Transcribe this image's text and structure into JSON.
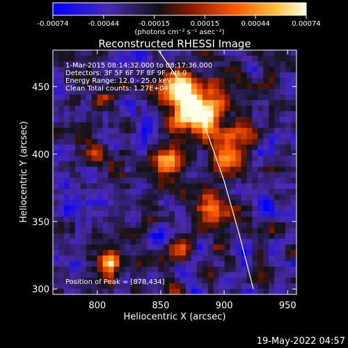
{
  "chart_data": {
    "type": "heatmap",
    "title": "Reconstructed RHESSI Image",
    "xlabel": "Heliocentric X (arcsec)",
    "ylabel": "Heliocentric Y (arcsec)",
    "xlim": [
      765,
      957
    ],
    "ylim": [
      296,
      477
    ],
    "xticks": [
      800,
      850,
      900,
      950
    ],
    "yticks": [
      300,
      350,
      400,
      450
    ],
    "colorbar": {
      "ticks": [
        "-0.00074",
        "-0.00044",
        "-0.00015",
        "0.00015",
        "0.00044",
        "0.00074"
      ],
      "range": [
        -0.00074,
        0.00074
      ],
      "unit_label": "(photons cm⁻² s⁻¹ asec⁻²)",
      "colors": [
        "#0000ff",
        "#4a2ab0",
        "#1a1a1a",
        "#b03000",
        "#ff7800",
        "#ffffe0"
      ]
    },
    "annotations": [
      " 1-Mar-2015 08:14:32.000 to 08:17:36.000",
      "Detectors: 3F 5F 6F 7F 8F 9F, Att 0",
      "Energy Range: 12.0 - 25.0 keV",
      "Clean    Total counts: 1.27E+04"
    ],
    "peak_label": "Position of Peak = [878,434]",
    "peak": [
      878,
      434
    ],
    "limb_curve": [
      [
        848,
        477
      ],
      [
        868,
        450
      ],
      [
        885,
        420
      ],
      [
        900,
        380
      ],
      [
        912,
        340
      ],
      [
        923,
        300
      ]
    ],
    "bright_regions": [
      {
        "x": 878,
        "y": 434,
        "amp": 1.0,
        "sx": 22,
        "sy": 20
      },
      {
        "x": 860,
        "y": 450,
        "amp": 0.6,
        "sx": 14,
        "sy": 12
      },
      {
        "x": 900,
        "y": 398,
        "amp": 0.7,
        "sx": 12,
        "sy": 14
      },
      {
        "x": 890,
        "y": 360,
        "amp": 0.75,
        "sx": 10,
        "sy": 12
      },
      {
        "x": 855,
        "y": 395,
        "amp": 0.55,
        "sx": 12,
        "sy": 10
      },
      {
        "x": 810,
        "y": 320,
        "amp": 0.8,
        "sx": 8,
        "sy": 10
      },
      {
        "x": 800,
        "y": 400,
        "amp": 0.5,
        "sx": 10,
        "sy": 10
      },
      {
        "x": 800,
        "y": 440,
        "amp": 0.45,
        "sx": 10,
        "sy": 8
      },
      {
        "x": 920,
        "y": 410,
        "amp": 0.45,
        "sx": 8,
        "sy": 12
      },
      {
        "x": 865,
        "y": 330,
        "amp": 0.45,
        "sx": 10,
        "sy": 10
      }
    ],
    "dark_regions": [
      {
        "x": 840,
        "y": 420,
        "amp": 0.7,
        "sx": 10,
        "sy": 12
      },
      {
        "x": 820,
        "y": 470,
        "amp": 0.6,
        "sx": 10,
        "sy": 8
      },
      {
        "x": 935,
        "y": 360,
        "amp": 0.5,
        "sx": 8,
        "sy": 10
      },
      {
        "x": 775,
        "y": 370,
        "amp": 0.45,
        "sx": 8,
        "sy": 10
      }
    ],
    "grid": false
  },
  "timestamp": "19-May-2022 04:57"
}
